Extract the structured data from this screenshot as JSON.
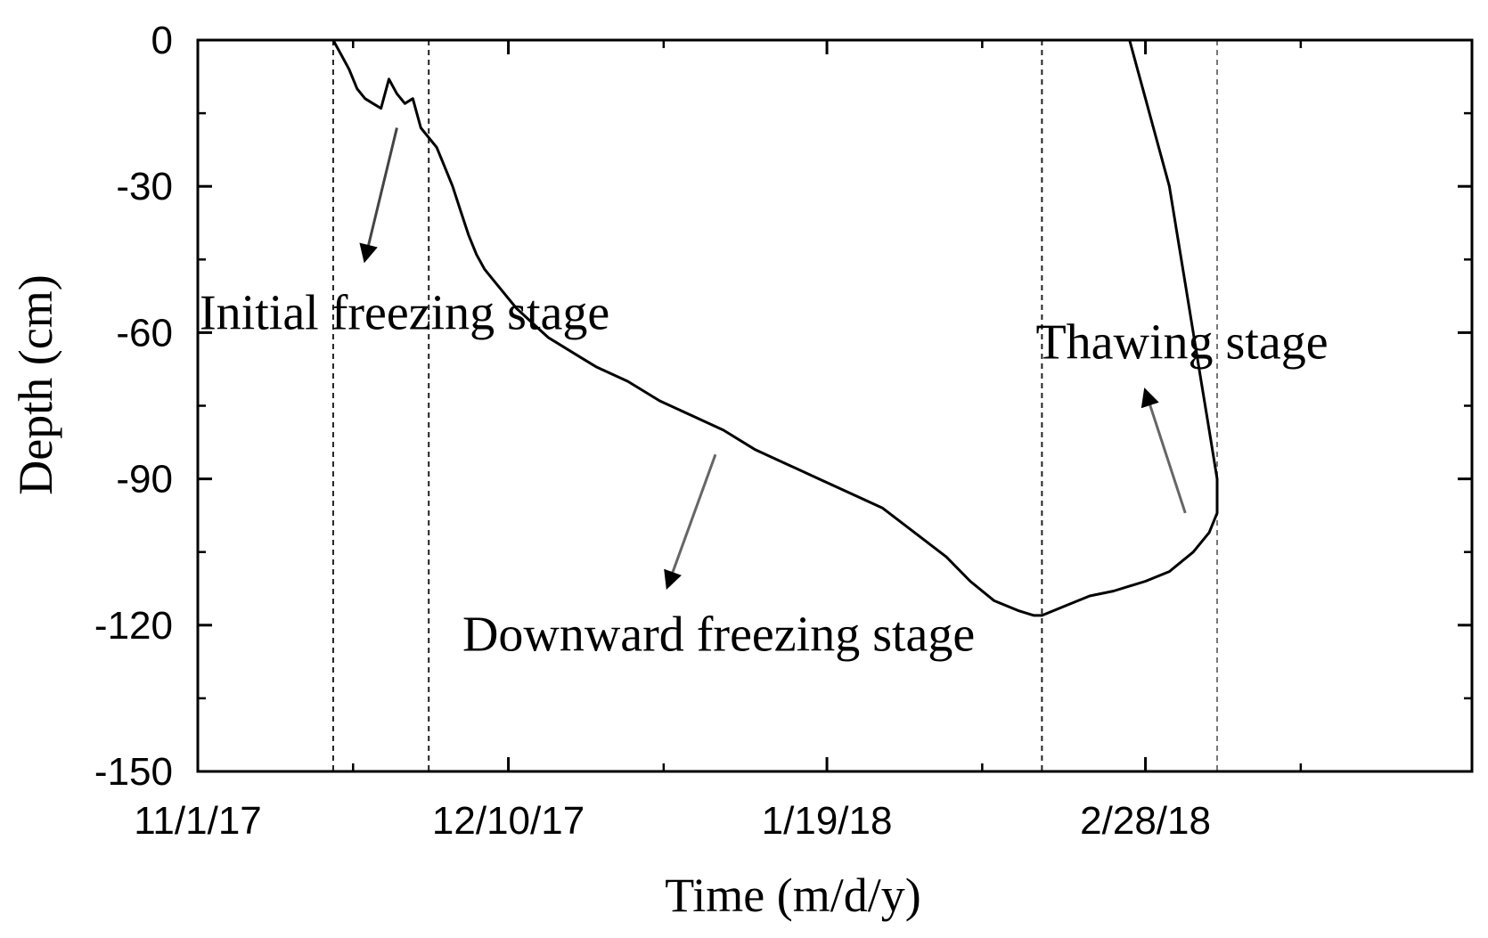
{
  "chart_data": {
    "type": "line",
    "xlabel": "Time (m/d/y)",
    "ylabel": "Depth (cm)",
    "xlim": [
      "2017-11-01",
      "2018-04-10"
    ],
    "ylim": [
      -150,
      0
    ],
    "x_ticks": [
      {
        "date": "2017-11-01",
        "label": "11/1/17"
      },
      {
        "date": "2017-12-10",
        "label": "12/10/17"
      },
      {
        "date": "2018-01-19",
        "label": "1/19/18"
      },
      {
        "date": "2018-02-28",
        "label": "2/28/18"
      }
    ],
    "y_ticks": [
      {
        "value": 0,
        "label": "0"
      },
      {
        "value": -30,
        "label": "-30"
      },
      {
        "value": -60,
        "label": "-60"
      },
      {
        "value": -90,
        "label": "-90"
      },
      {
        "value": -120,
        "label": "-120"
      },
      {
        "value": -150,
        "label": "-150"
      }
    ],
    "series": [
      {
        "points": [
          [
            "2017-11-18",
            0
          ],
          [
            "2017-11-19",
            -3
          ],
          [
            "2017-11-20",
            -6
          ],
          [
            "2017-11-21",
            -10
          ],
          [
            "2017-11-22",
            -12
          ],
          [
            "2017-11-23",
            -13
          ],
          [
            "2017-11-24",
            -14
          ],
          [
            "2017-11-25",
            -8
          ],
          [
            "2017-11-26",
            -11
          ],
          [
            "2017-11-27",
            -13
          ],
          [
            "2017-11-28",
            -12
          ],
          [
            "2017-11-29",
            -18
          ],
          [
            "2017-11-30",
            -20
          ],
          [
            "2017-12-01",
            -22
          ],
          [
            "2017-12-02",
            -26
          ],
          [
            "2017-12-03",
            -30
          ],
          [
            "2017-12-04",
            -35
          ],
          [
            "2017-12-05",
            -40
          ],
          [
            "2017-12-06",
            -44
          ],
          [
            "2017-12-07",
            -47
          ],
          [
            "2017-12-08",
            -49
          ],
          [
            "2017-12-09",
            -51
          ],
          [
            "2017-12-11",
            -55
          ],
          [
            "2017-12-13",
            -58
          ],
          [
            "2017-12-15",
            -61
          ],
          [
            "2017-12-17",
            -63
          ],
          [
            "2017-12-19",
            -65
          ],
          [
            "2017-12-21",
            -67
          ],
          [
            "2017-12-25",
            -70
          ],
          [
            "2017-12-29",
            -74
          ],
          [
            "2018-01-02",
            -77
          ],
          [
            "2018-01-06",
            -80
          ],
          [
            "2018-01-10",
            -84
          ],
          [
            "2018-01-14",
            -87
          ],
          [
            "2018-01-18",
            -90
          ],
          [
            "2018-01-22",
            -93
          ],
          [
            "2018-01-26",
            -96
          ],
          [
            "2018-01-30",
            -101
          ],
          [
            "2018-02-03",
            -106
          ],
          [
            "2018-02-06",
            -111
          ],
          [
            "2018-02-09",
            -115
          ],
          [
            "2018-02-12",
            -117
          ],
          [
            "2018-02-14",
            -118
          ],
          [
            "2018-02-15",
            -118
          ],
          [
            "2018-02-18",
            -116
          ],
          [
            "2018-02-21",
            -114
          ],
          [
            "2018-02-24",
            -113
          ],
          [
            "2018-02-28",
            -111
          ],
          [
            "2018-03-03",
            -109
          ],
          [
            "2018-03-06",
            -105
          ],
          [
            "2018-03-08",
            -101
          ],
          [
            "2018-03-09",
            -97
          ],
          [
            "2018-03-09",
            -90
          ],
          [
            "2018-03-08",
            -80
          ],
          [
            "2018-03-07",
            -70
          ],
          [
            "2018-03-06",
            -60
          ],
          [
            "2018-03-05",
            -50
          ],
          [
            "2018-03-04",
            -40
          ],
          [
            "2018-03-03",
            -30
          ],
          [
            "2018-03-01",
            -18
          ],
          [
            "2018-02-28",
            -12
          ],
          [
            "2018-02-27",
            -6
          ],
          [
            "2018-02-26",
            0
          ]
        ]
      }
    ],
    "stage_boundaries": [
      "2017-11-18",
      "2017-11-30",
      "2018-02-15",
      "2018-03-09"
    ],
    "annotations": [
      {
        "text": "Initial freezing stage",
        "date": "2017-11-01",
        "depth": -56
      },
      {
        "text": "Downward freezing stage",
        "date": "2017-12-04",
        "depth": -122
      },
      {
        "text": "Thawing stage",
        "date": "2018-02-14",
        "depth": -62
      }
    ],
    "arrows": [
      {
        "from": [
          "2017-11-26",
          -18
        ],
        "to": [
          "2017-11-22",
          -45
        ],
        "color": "#444444"
      },
      {
        "from": [
          "2018-01-05",
          -85
        ],
        "to": [
          "2017-12-30",
          -112
        ],
        "color": "#666666"
      },
      {
        "from": [
          "2018-03-05",
          -97
        ],
        "to": [
          "2018-02-28",
          -72
        ],
        "color": "#666666"
      }
    ],
    "line_color": "#000000",
    "boundary_colors": [
      "#222222",
      "#222222",
      "#222222",
      "#777777"
    ],
    "grid": false,
    "legend": "none"
  }
}
